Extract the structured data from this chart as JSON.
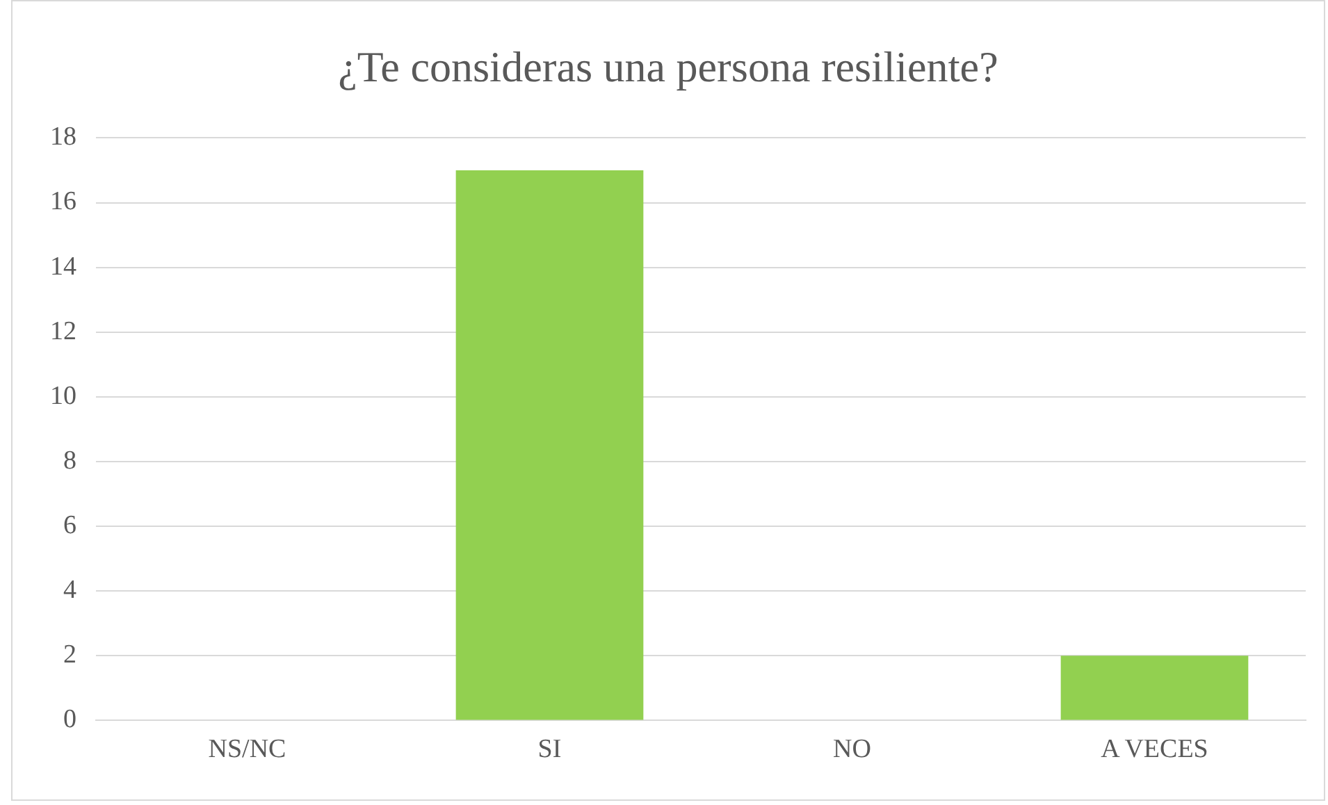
{
  "chart_data": {
    "type": "bar",
    "title": "¿Te consideras una persona resiliente?",
    "categories": [
      "NS/NC",
      "SI",
      "NO",
      "A VECES"
    ],
    "values": [
      0,
      17,
      0,
      2
    ],
    "color": "#92d050",
    "ylim": [
      0,
      18
    ],
    "yticks": [
      0,
      2,
      4,
      6,
      8,
      10,
      12,
      14,
      16,
      18
    ],
    "grid": "y"
  }
}
